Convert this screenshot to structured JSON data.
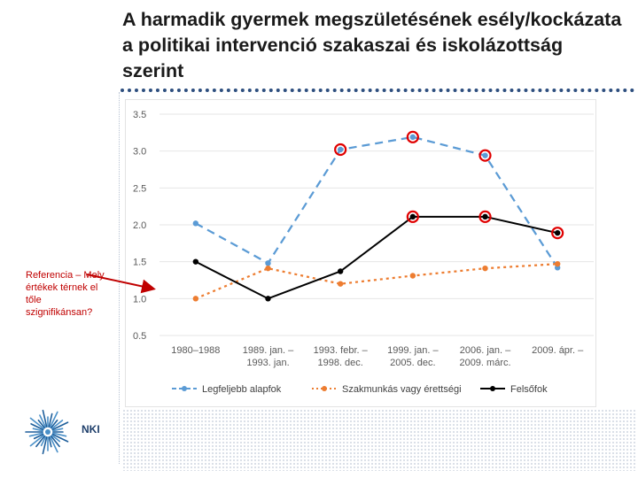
{
  "chart_data": {
    "type": "line",
    "title": "A harmadik gyermek megszületésének esély/kockázata a politikai intervenció szakaszai és iskolázottság szerint",
    "categories": [
      "1980–1988",
      "1989. jan. – 1993. jan.",
      "1993. febr. – 1998. dec.",
      "1999. jan. – 2005. dec.",
      "2006. jan. – 2009. márc.",
      "2009. ápr. –"
    ],
    "category_lines": [
      [
        "1980–1988"
      ],
      [
        "1989. jan. –",
        "1993. jan."
      ],
      [
        "1993. febr. –",
        "1998. dec."
      ],
      [
        "1999. jan. –",
        "2005. dec."
      ],
      [
        "2006. jan. –",
        "2009. márc."
      ],
      [
        "2009. ápr. –"
      ]
    ],
    "ylim": [
      0.5,
      3.5
    ],
    "yticks": [
      "0.5",
      "1.0",
      "1.5",
      "2.0",
      "2.5",
      "3.0",
      "3.5"
    ],
    "grid": true,
    "legend_position": "bottom",
    "series": [
      {
        "name": "Legfeljebb alapfok",
        "color": "#5b9bd5",
        "line_style": "dashed",
        "values": [
          2.02,
          1.48,
          3.02,
          3.19,
          2.94,
          1.42
        ],
        "significant": [
          false,
          false,
          true,
          true,
          true,
          false
        ]
      },
      {
        "name": "Szakmunkás vagy érettségi",
        "color": "#ed7d31",
        "line_style": "dotted",
        "values": [
          1.0,
          1.41,
          1.2,
          1.31,
          1.41,
          1.47
        ],
        "significant": [
          false,
          false,
          false,
          false,
          false,
          false
        ]
      },
      {
        "name": "Felsőfok",
        "color": "#000000",
        "line_style": "solid",
        "values": [
          1.5,
          1.0,
          1.37,
          2.11,
          2.11,
          1.89
        ],
        "significant": [
          false,
          false,
          false,
          true,
          true,
          true
        ]
      }
    ],
    "significance_marker_color": "#e00000"
  },
  "annotation": {
    "text": "Referencia – Mely értékek térnek el tőle szignifikánsan?",
    "color": "#c00000"
  },
  "logo": {
    "text": "NKI",
    "icon": "nki-sunburst-icon"
  }
}
